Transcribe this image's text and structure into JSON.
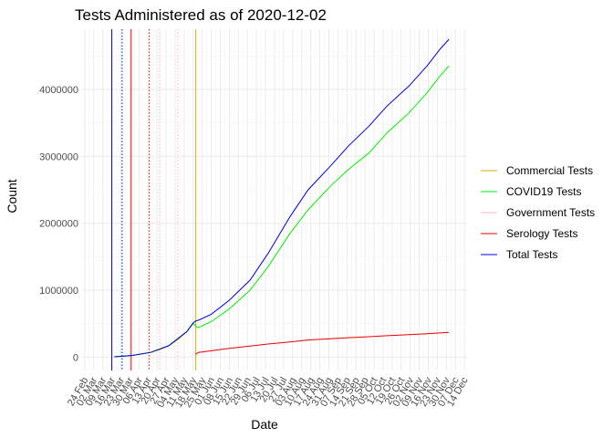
{
  "chart_data": {
    "type": "line",
    "title": "Tests Administered as of 2020-12-02",
    "xlabel": "Date",
    "ylabel": "Count",
    "xlim": [
      "2020-02-22",
      "2020-12-16"
    ],
    "ylim": [
      -200000,
      4900000
    ],
    "y_ticks": [
      0,
      1000000,
      2000000,
      3000000,
      4000000
    ],
    "y_tick_labels": [
      "0",
      "1000000",
      "2000000",
      "3000000",
      "4000000"
    ],
    "x_ticks": [
      "2020-02-24",
      "2020-03-02",
      "2020-03-09",
      "2020-03-16",
      "2020-03-23",
      "2020-03-30",
      "2020-04-06",
      "2020-04-13",
      "2020-04-20",
      "2020-04-27",
      "2020-05-04",
      "2020-05-11",
      "2020-05-18",
      "2020-05-25",
      "2020-06-01",
      "2020-06-08",
      "2020-06-15",
      "2020-06-22",
      "2020-06-29",
      "2020-07-06",
      "2020-07-13",
      "2020-07-20",
      "2020-07-27",
      "2020-08-03",
      "2020-08-10",
      "2020-08-17",
      "2020-08-24",
      "2020-08-31",
      "2020-09-07",
      "2020-09-14",
      "2020-09-21",
      "2020-09-28",
      "2020-10-05",
      "2020-10-12",
      "2020-10-19",
      "2020-10-26",
      "2020-11-02",
      "2020-11-09",
      "2020-11-16",
      "2020-11-23",
      "2020-11-30",
      "2020-12-07",
      "2020-12-14"
    ],
    "x_tick_labels": [
      "24 Feb",
      "02 Mar",
      "09 Mar",
      "16 Mar",
      "23 Mar",
      "30 Mar",
      "06 Apr",
      "13 Apr",
      "20 Apr",
      "27 Apr",
      "04 May",
      "11 May",
      "18 May",
      "25 May",
      "01 Jun",
      "08 Jun",
      "15 Jun",
      "22 Jun",
      "29 Jun",
      "06 Jul",
      "13 Jul",
      "20 Jul",
      "27 Jul",
      "03 Aug",
      "10 Aug",
      "17 Aug",
      "24 Aug",
      "31 Aug",
      "07 Sep",
      "14 Sep",
      "21 Sep",
      "28 Sep",
      "05 Oct",
      "12 Oct",
      "19 Oct",
      "26 Oct",
      "02 Nov",
      "09 Nov",
      "16 Nov",
      "23 Nov",
      "30 Nov",
      "07 Dec",
      "14 Dec"
    ],
    "grid": true,
    "legend_position": "right",
    "series": [
      {
        "name": "Commercial Tests",
        "color": "#d4b000",
        "x": [
          "2020-03-18",
          "2020-03-25",
          "2020-04-01",
          "2020-04-08",
          "2020-04-15",
          "2020-04-22",
          "2020-04-29",
          "2020-05-06",
          "2020-05-13",
          "2020-05-18"
        ],
        "y": [
          5000,
          12000,
          25000,
          45000,
          70000,
          110000,
          170000,
          260000,
          380000,
          500000
        ]
      },
      {
        "name": "COVID19 Tests",
        "color": "#00ee00",
        "x": [
          "2020-03-18",
          "2020-04-01",
          "2020-04-15",
          "2020-04-29",
          "2020-05-13",
          "2020-05-18",
          "2020-05-20",
          "2020-05-22",
          "2020-06-01",
          "2020-06-15",
          "2020-07-01",
          "2020-07-15",
          "2020-08-01",
          "2020-08-15",
          "2020-09-01",
          "2020-09-15",
          "2020-10-01",
          "2020-10-15",
          "2020-11-01",
          "2020-11-15",
          "2020-11-25",
          "2020-12-02"
        ],
        "y": [
          5000,
          25000,
          70000,
          170000,
          380000,
          510000,
          460000,
          440000,
          530000,
          720000,
          1000000,
          1350000,
          1850000,
          2200000,
          2550000,
          2800000,
          3050000,
          3350000,
          3650000,
          3950000,
          4200000,
          4350000
        ]
      },
      {
        "name": "Government Tests",
        "color": "#ffb6c1",
        "x": [],
        "y": []
      },
      {
        "name": "Serology Tests",
        "color": "#ee0000",
        "x": [
          "2020-05-20",
          "2020-05-22",
          "2020-06-01",
          "2020-06-15",
          "2020-07-01",
          "2020-07-15",
          "2020-08-01",
          "2020-08-15",
          "2020-09-01",
          "2020-09-15",
          "2020-10-01",
          "2020-10-15",
          "2020-11-01",
          "2020-11-15",
          "2020-12-02"
        ],
        "y": [
          40000,
          70000,
          95000,
          130000,
          165000,
          195000,
          225000,
          255000,
          275000,
          290000,
          305000,
          320000,
          335000,
          350000,
          370000
        ]
      },
      {
        "name": "Total Tests",
        "color": "#0000dd",
        "x": [
          "2020-03-18",
          "2020-04-01",
          "2020-04-15",
          "2020-04-29",
          "2020-05-13",
          "2020-05-18",
          "2020-05-20",
          "2020-05-22",
          "2020-06-01",
          "2020-06-15",
          "2020-07-01",
          "2020-07-15",
          "2020-08-01",
          "2020-08-15",
          "2020-09-01",
          "2020-09-15",
          "2020-10-01",
          "2020-10-15",
          "2020-11-01",
          "2020-11-15",
          "2020-11-25",
          "2020-12-02"
        ],
        "y": [
          5000,
          25000,
          70000,
          170000,
          380000,
          510000,
          540000,
          550000,
          640000,
          850000,
          1150000,
          1550000,
          2100000,
          2500000,
          2850000,
          3150000,
          3450000,
          3750000,
          4050000,
          4350000,
          4600000,
          4750000
        ]
      }
    ],
    "vlines": [
      {
        "x": "2020-03-16",
        "color": "#0000dd",
        "style": "solid"
      },
      {
        "x": "2020-03-24",
        "color": "#0000dd",
        "style": "dotted"
      },
      {
        "x": "2020-03-31",
        "color": "#ee0000",
        "style": "solid"
      },
      {
        "x": "2020-04-14",
        "color": "#ee0000",
        "style": "dotted"
      },
      {
        "x": "2020-04-22",
        "color": "#ffb6c1",
        "style": "dotted"
      },
      {
        "x": "2020-05-06",
        "color": "#ffb6c1",
        "style": "dotted"
      },
      {
        "x": "2020-05-20",
        "color": "#d4b000",
        "style": "solid"
      }
    ]
  }
}
